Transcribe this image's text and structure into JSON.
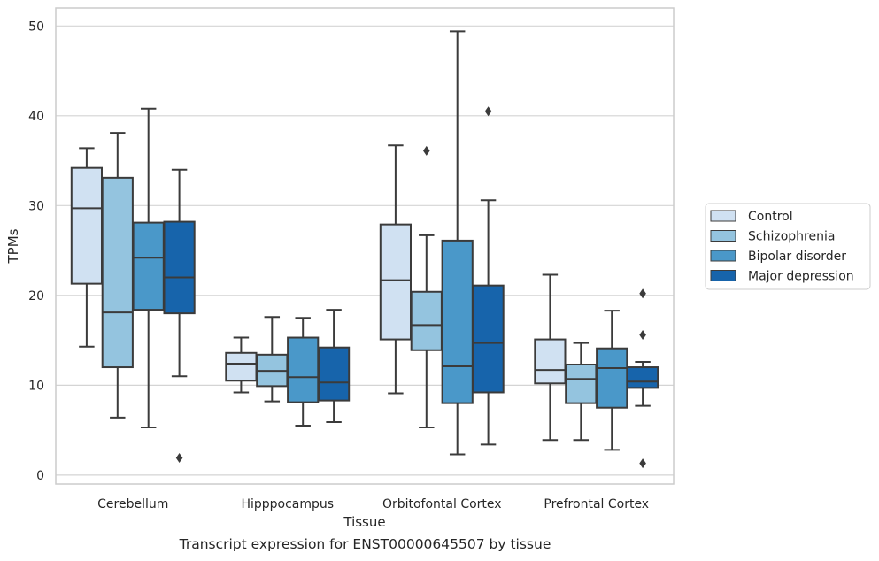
{
  "caption": "Transcript expression for ENST00000645507 by tissue",
  "chart_data": {
    "type": "box",
    "xlabel": "Tissue",
    "ylabel": "TPMs",
    "ylim": [
      -1,
      52
    ],
    "yticks": [
      0,
      10,
      20,
      30,
      40,
      50
    ],
    "grid": true,
    "legend_position": "right",
    "categories": [
      "Cerebellum",
      "Hipppocampus",
      "Orbitofontal Cortex",
      "Prefrontal Cortex"
    ],
    "series": [
      {
        "name": "Control",
        "color": "#d0e1f2",
        "boxes": [
          {
            "whislo": 14.3,
            "q1": 21.3,
            "med": 29.7,
            "q3": 34.2,
            "whishi": 36.4,
            "fliers": []
          },
          {
            "whislo": 9.2,
            "q1": 10.5,
            "med": 12.4,
            "q3": 13.6,
            "whishi": 15.3,
            "fliers": []
          },
          {
            "whislo": 9.1,
            "q1": 15.1,
            "med": 21.7,
            "q3": 27.9,
            "whishi": 36.7,
            "fliers": []
          },
          {
            "whislo": 3.9,
            "q1": 10.2,
            "med": 11.7,
            "q3": 15.1,
            "whishi": 22.3,
            "fliers": []
          }
        ]
      },
      {
        "name": "Schizophrenia",
        "color": "#94c4df",
        "boxes": [
          {
            "whislo": 6.4,
            "q1": 12.0,
            "med": 18.1,
            "q3": 33.1,
            "whishi": 38.1,
            "fliers": []
          },
          {
            "whislo": 8.2,
            "q1": 9.9,
            "med": 11.6,
            "q3": 13.4,
            "whishi": 17.6,
            "fliers": []
          },
          {
            "whislo": 5.3,
            "q1": 13.9,
            "med": 16.7,
            "q3": 20.4,
            "whishi": 26.7,
            "fliers": [
              36.1
            ]
          },
          {
            "whislo": 3.9,
            "q1": 8.0,
            "med": 10.7,
            "q3": 12.3,
            "whishi": 14.7,
            "fliers": []
          }
        ]
      },
      {
        "name": "Bipolar disorder",
        "color": "#4a98c9",
        "boxes": [
          {
            "whislo": 5.3,
            "q1": 18.4,
            "med": 24.2,
            "q3": 28.1,
            "whishi": 40.8,
            "fliers": []
          },
          {
            "whislo": 5.5,
            "q1": 8.1,
            "med": 10.9,
            "q3": 15.3,
            "whishi": 17.5,
            "fliers": []
          },
          {
            "whislo": 2.3,
            "q1": 8.0,
            "med": 12.1,
            "q3": 26.1,
            "whishi": 49.4,
            "fliers": []
          },
          {
            "whislo": 2.8,
            "q1": 7.5,
            "med": 11.9,
            "q3": 14.1,
            "whishi": 18.3,
            "fliers": []
          }
        ]
      },
      {
        "name": "Major depression",
        "color": "#1764ab",
        "boxes": [
          {
            "whislo": 11.0,
            "q1": 18.0,
            "med": 22.0,
            "q3": 28.2,
            "whishi": 34.0,
            "fliers": [
              1.9
            ]
          },
          {
            "whislo": 5.9,
            "q1": 8.3,
            "med": 10.3,
            "q3": 14.2,
            "whishi": 18.4,
            "fliers": []
          },
          {
            "whislo": 3.4,
            "q1": 9.2,
            "med": 14.7,
            "q3": 21.1,
            "whishi": 30.6,
            "fliers": [
              40.5
            ]
          },
          {
            "whislo": 7.7,
            "q1": 9.7,
            "med": 10.4,
            "q3": 12.0,
            "whishi": 12.6,
            "fliers": [
              20.2,
              15.6,
              1.3
            ]
          }
        ]
      }
    ]
  }
}
